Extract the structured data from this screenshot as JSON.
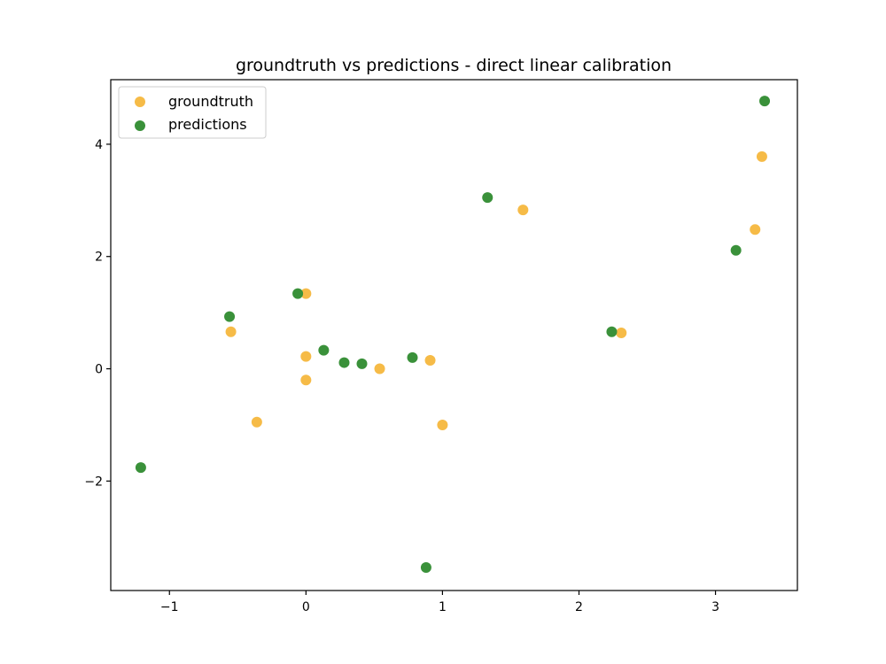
{
  "chart_data": {
    "type": "scatter",
    "title": "groundtruth vs predictions - direct linear calibration",
    "xlabel": "",
    "ylabel": "",
    "xlim": [
      -1.43,
      3.6
    ],
    "ylim": [
      -3.95,
      5.15
    ],
    "x_ticks": [
      {
        "value": -1,
        "label": "−1"
      },
      {
        "value": 0,
        "label": "0"
      },
      {
        "value": 1,
        "label": "1"
      },
      {
        "value": 2,
        "label": "2"
      },
      {
        "value": 3,
        "label": "3"
      }
    ],
    "y_ticks": [
      {
        "value": -2,
        "label": "−2"
      },
      {
        "value": 0,
        "label": "0"
      },
      {
        "value": 2,
        "label": "2"
      },
      {
        "value": 4,
        "label": "4"
      }
    ],
    "grid": false,
    "legend_position": "top-left",
    "series": [
      {
        "name": "groundtruth",
        "color": "#f6bb47",
        "points": [
          {
            "x": -0.55,
            "y": 0.66
          },
          {
            "x": -0.36,
            "y": -0.95
          },
          {
            "x": 0.0,
            "y": 1.34
          },
          {
            "x": 0.0,
            "y": 0.22
          },
          {
            "x": 0.0,
            "y": -0.2
          },
          {
            "x": 0.54,
            "y": 0.0
          },
          {
            "x": 0.91,
            "y": 0.15
          },
          {
            "x": 1.0,
            "y": -1.0
          },
          {
            "x": 1.59,
            "y": 2.83
          },
          {
            "x": 2.31,
            "y": 0.64
          },
          {
            "x": 3.29,
            "y": 2.48
          },
          {
            "x": 3.34,
            "y": 3.78
          }
        ]
      },
      {
        "name": "predictions",
        "color": "#3a913a",
        "points": [
          {
            "x": -1.21,
            "y": -1.76
          },
          {
            "x": -0.56,
            "y": 0.93
          },
          {
            "x": -0.06,
            "y": 1.34
          },
          {
            "x": 0.13,
            "y": 0.33
          },
          {
            "x": 0.28,
            "y": 0.11
          },
          {
            "x": 0.41,
            "y": 0.09
          },
          {
            "x": 0.78,
            "y": 0.2
          },
          {
            "x": 0.88,
            "y": -3.54
          },
          {
            "x": 1.33,
            "y": 3.05
          },
          {
            "x": 2.24,
            "y": 0.66
          },
          {
            "x": 3.15,
            "y": 2.11
          },
          {
            "x": 3.36,
            "y": 4.77
          }
        ]
      }
    ]
  }
}
